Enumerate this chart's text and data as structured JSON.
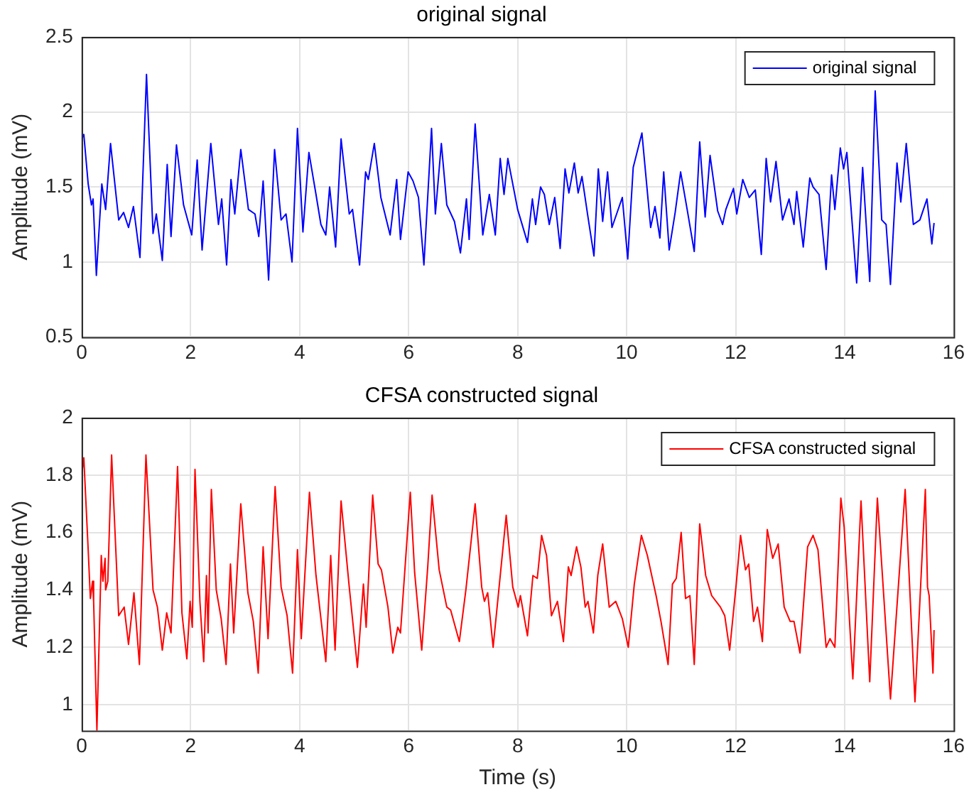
{
  "chart_data": [
    {
      "type": "line",
      "title": "original signal",
      "ylabel": "Amplitude (mV)",
      "xlim": [
        0,
        16
      ],
      "xticks": [
        0,
        2,
        4,
        6,
        8,
        10,
        12,
        14,
        16
      ],
      "ylim": [
        0.5,
        2.5
      ],
      "yticks": [
        0.5,
        1,
        1.5,
        2,
        2.5
      ],
      "grid": true,
      "legend": "top right",
      "marker": "none",
      "line_style": "solid",
      "series": [
        {
          "name": "original signal",
          "color": "#0000ff",
          "x": [
            0,
            0.04,
            0.12,
            0.18,
            0.21,
            0.27,
            0.37,
            0.44,
            0.53,
            0.68,
            0.77,
            0.86,
            0.95,
            1.07,
            1.19,
            1.31,
            1.37,
            1.48,
            1.57,
            1.64,
            1.74,
            1.87,
            2.02,
            2.12,
            2.21,
            2.37,
            2.51,
            2.57,
            2.66,
            2.74,
            2.81,
            2.92,
            3.06,
            3.18,
            3.25,
            3.33,
            3.43,
            3.54,
            3.66,
            3.75,
            3.86,
            3.96,
            4.06,
            4.17,
            4.3,
            4.39,
            4.48,
            4.55,
            4.66,
            4.76,
            4.91,
            4.97,
            5.1,
            5.21,
            5.26,
            5.37,
            5.49,
            5.66,
            5.78,
            5.85,
            5.99,
            6.08,
            6.18,
            6.28,
            6.42,
            6.49,
            6.6,
            6.7,
            6.84,
            6.95,
            7.06,
            7.11,
            7.22,
            7.36,
            7.48,
            7.59,
            7.68,
            7.75,
            7.82,
            8.0,
            8.18,
            8.27,
            8.33,
            8.42,
            8.49,
            8.58,
            8.68,
            8.78,
            8.87,
            8.94,
            9.04,
            9.11,
            9.18,
            9.29,
            9.4,
            9.48,
            9.56,
            9.65,
            9.73,
            9.92,
            10.02,
            10.12,
            10.28,
            10.44,
            10.52,
            10.61,
            10.68,
            10.78,
            10.89,
            10.99,
            11.11,
            11.24,
            11.34,
            11.44,
            11.53,
            11.67,
            11.76,
            11.82,
            11.96,
            12.02,
            12.13,
            12.25,
            12.36,
            12.47,
            12.56,
            12.64,
            12.74,
            12.86,
            12.98,
            13.07,
            13.12,
            13.24,
            13.36,
            13.42,
            13.53,
            13.66,
            13.76,
            13.82,
            13.92,
            13.98,
            14.04,
            14.22,
            14.33,
            14.46,
            14.56,
            14.68,
            14.76,
            14.84,
            14.96,
            15.03,
            15.13,
            15.26,
            15.38,
            15.51,
            15.6,
            15.64
          ],
          "values": [
            1.82,
            1.85,
            1.52,
            1.38,
            1.42,
            0.91,
            1.52,
            1.35,
            1.79,
            1.28,
            1.33,
            1.23,
            1.37,
            1.03,
            2.25,
            1.19,
            1.32,
            1.01,
            1.65,
            1.17,
            1.78,
            1.38,
            1.18,
            1.68,
            1.08,
            1.79,
            1.25,
            1.42,
            0.98,
            1.55,
            1.32,
            1.75,
            1.35,
            1.32,
            1.17,
            1.54,
            0.88,
            1.75,
            1.28,
            1.32,
            1.0,
            1.89,
            1.2,
            1.73,
            1.45,
            1.25,
            1.18,
            1.5,
            1.1,
            1.82,
            1.32,
            1.35,
            0.98,
            1.6,
            1.55,
            1.79,
            1.43,
            1.18,
            1.55,
            1.15,
            1.6,
            1.54,
            1.43,
            0.98,
            1.89,
            1.32,
            1.79,
            1.38,
            1.27,
            1.06,
            1.42,
            1.15,
            1.92,
            1.18,
            1.45,
            1.18,
            1.69,
            1.45,
            1.69,
            1.35,
            1.13,
            1.42,
            1.25,
            1.5,
            1.45,
            1.25,
            1.43,
            1.09,
            1.62,
            1.46,
            1.66,
            1.46,
            1.57,
            1.3,
            1.04,
            1.62,
            1.27,
            1.6,
            1.23,
            1.43,
            1.02,
            1.63,
            1.86,
            1.23,
            1.37,
            1.16,
            1.6,
            1.08,
            1.33,
            1.6,
            1.35,
            1.07,
            1.8,
            1.3,
            1.71,
            1.34,
            1.25,
            1.35,
            1.49,
            1.32,
            1.55,
            1.43,
            1.48,
            1.05,
            1.69,
            1.4,
            1.67,
            1.28,
            1.42,
            1.25,
            1.47,
            1.1,
            1.56,
            1.5,
            1.45,
            0.95,
            1.58,
            1.35,
            1.76,
            1.62,
            1.73,
            0.86,
            1.63,
            0.87,
            2.14,
            1.28,
            1.25,
            0.85,
            1.66,
            1.4,
            1.79,
            1.25,
            1.28,
            1.42,
            1.12,
            1.26
          ]
        }
      ]
    },
    {
      "type": "line",
      "title": "CFSA constructed signal",
      "xlabel": "Time (s)",
      "ylabel": "Amplitude (mV)",
      "xlim": [
        0,
        16
      ],
      "xticks": [
        0,
        2,
        4,
        6,
        8,
        10,
        12,
        14,
        16
      ],
      "ylim": [
        0.91,
        2
      ],
      "yticks": [
        1,
        1.2,
        1.4,
        1.6,
        1.8,
        2
      ],
      "grid": true,
      "legend": "top right",
      "marker": "none",
      "line_style": "solid",
      "series": [
        {
          "name": "CFSA constructed signal",
          "color": "#ff0000",
          "x": [
            0,
            0.04,
            0.12,
            0.16,
            0.2,
            0.22,
            0.28,
            0.36,
            0.39,
            0.43,
            0.44,
            0.48,
            0.55,
            0.68,
            0.78,
            0.86,
            0.96,
            1.06,
            1.18,
            1.31,
            1.39,
            1.48,
            1.56,
            1.64,
            1.76,
            1.84,
            1.93,
            1.99,
            2.03,
            2.08,
            2.17,
            2.24,
            2.29,
            2.32,
            2.38,
            2.47,
            2.56,
            2.65,
            2.73,
            2.79,
            2.92,
            3.05,
            3.15,
            3.24,
            3.33,
            3.42,
            3.55,
            3.66,
            3.77,
            3.87,
            3.96,
            4.03,
            4.18,
            4.3,
            4.48,
            4.57,
            4.65,
            4.76,
            4.91,
            5.06,
            5.17,
            5.22,
            5.34,
            5.44,
            5.5,
            5.62,
            5.71,
            5.8,
            5.85,
            6.03,
            6.11,
            6.24,
            6.35,
            6.43,
            6.56,
            6.7,
            6.77,
            6.93,
            7.05,
            7.22,
            7.34,
            7.39,
            7.45,
            7.55,
            7.67,
            7.79,
            7.91,
            8.01,
            8.05,
            8.18,
            8.28,
            8.36,
            8.44,
            8.53,
            8.62,
            8.73,
            8.84,
            8.93,
            8.98,
            9.08,
            9.16,
            9.24,
            9.29,
            9.39,
            9.47,
            9.56,
            9.68,
            9.8,
            9.92,
            10.03,
            10.14,
            10.27,
            10.38,
            10.54,
            10.63,
            10.76,
            10.84,
            10.91,
            11.0,
            11.08,
            11.16,
            11.24,
            11.34,
            11.45,
            11.56,
            11.72,
            11.8,
            11.89,
            12.01,
            12.09,
            12.18,
            12.24,
            12.33,
            12.4,
            12.49,
            12.58,
            12.68,
            12.78,
            12.89,
            13.0,
            13.07,
            13.18,
            13.32,
            13.42,
            13.51,
            13.66,
            13.73,
            13.82,
            13.93,
            13.99,
            14.15,
            14.3,
            14.46,
            14.6,
            14.84,
            15.11,
            15.29,
            15.48,
            15.52,
            15.55,
            15.62,
            15.64
          ],
          "values": [
            1.8,
            1.86,
            1.54,
            1.37,
            1.43,
            1.36,
            0.91,
            1.52,
            1.43,
            1.51,
            1.4,
            1.43,
            1.87,
            1.31,
            1.34,
            1.21,
            1.39,
            1.14,
            1.87,
            1.4,
            1.34,
            1.19,
            1.32,
            1.25,
            1.83,
            1.32,
            1.16,
            1.36,
            1.27,
            1.82,
            1.36,
            1.15,
            1.45,
            1.25,
            1.75,
            1.4,
            1.3,
            1.14,
            1.49,
            1.25,
            1.7,
            1.39,
            1.29,
            1.11,
            1.55,
            1.23,
            1.76,
            1.41,
            1.31,
            1.11,
            1.54,
            1.23,
            1.74,
            1.45,
            1.15,
            1.52,
            1.19,
            1.71,
            1.41,
            1.13,
            1.42,
            1.27,
            1.73,
            1.49,
            1.47,
            1.34,
            1.18,
            1.27,
            1.25,
            1.74,
            1.46,
            1.19,
            1.48,
            1.73,
            1.47,
            1.34,
            1.33,
            1.22,
            1.4,
            1.7,
            1.41,
            1.36,
            1.39,
            1.2,
            1.43,
            1.66,
            1.41,
            1.34,
            1.38,
            1.24,
            1.45,
            1.44,
            1.59,
            1.52,
            1.31,
            1.36,
            1.22,
            1.48,
            1.45,
            1.55,
            1.48,
            1.34,
            1.36,
            1.25,
            1.45,
            1.56,
            1.34,
            1.36,
            1.3,
            1.2,
            1.42,
            1.59,
            1.52,
            1.38,
            1.29,
            1.14,
            1.42,
            1.44,
            1.6,
            1.37,
            1.38,
            1.14,
            1.63,
            1.45,
            1.38,
            1.34,
            1.31,
            1.19,
            1.42,
            1.59,
            1.47,
            1.49,
            1.29,
            1.34,
            1.22,
            1.61,
            1.51,
            1.56,
            1.34,
            1.29,
            1.29,
            1.18,
            1.55,
            1.59,
            1.54,
            1.2,
            1.23,
            1.2,
            1.72,
            1.62,
            1.09,
            1.71,
            1.08,
            1.72,
            1.02,
            1.75,
            1.01,
            1.75,
            1.41,
            1.38,
            1.11,
            1.26
          ]
        }
      ]
    }
  ]
}
